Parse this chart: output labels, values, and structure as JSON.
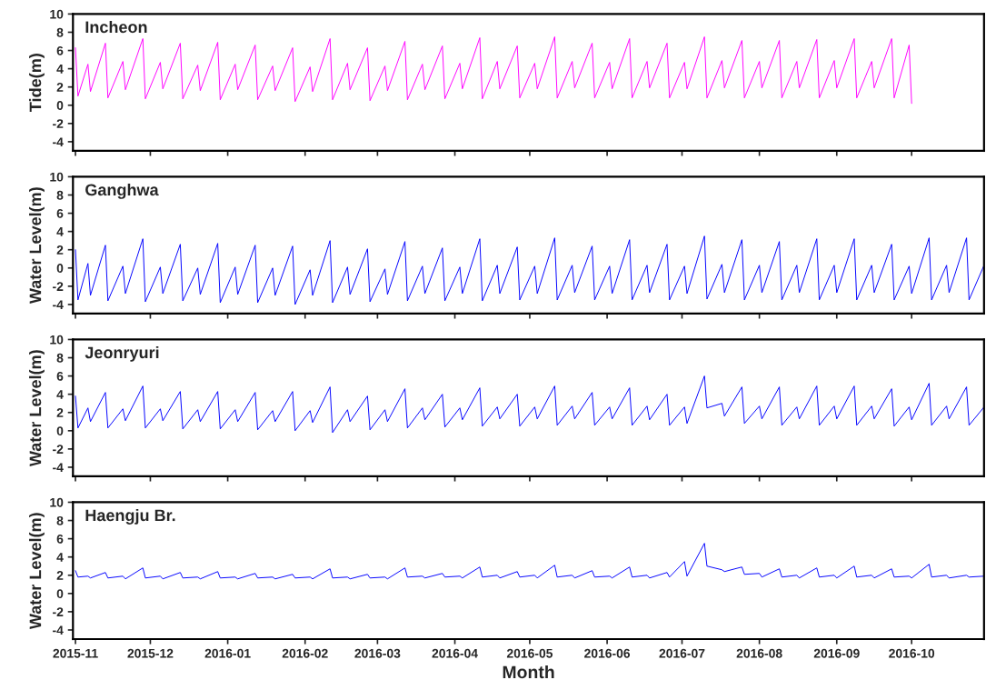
{
  "chart_data": [
    {
      "type": "line",
      "title": "Incheon",
      "ylabel": "Tide(m)",
      "ylim": [
        -5,
        10
      ],
      "yticks": [
        -4,
        -2,
        0,
        2,
        4,
        6,
        8,
        10
      ],
      "xlim": [
        "2015-10-31",
        "2016-10-30"
      ],
      "xticks": [
        "2015-11",
        "2015-12",
        "2016-01",
        "2016-02",
        "2016-03",
        "2016-04",
        "2016-05",
        "2016-06",
        "2016-07",
        "2016-08",
        "2016-09",
        "2016-10"
      ],
      "tick_labels": "y",
      "grid": false,
      "series": [
        {
          "color": "#ff00ff",
          "x": [
            "2015-11-01",
            "2015-11-02",
            "2015-11-06",
            "2015-11-07",
            "2015-11-13",
            "2015-11-14",
            "2015-11-20",
            "2015-11-21",
            "2015-11-28",
            "2015-11-29",
            "2015-12-05",
            "2015-12-06",
            "2015-12-13",
            "2015-12-14",
            "2015-12-20",
            "2015-12-21",
            "2015-12-28",
            "2015-12-29",
            "2016-01-04",
            "2016-01-05",
            "2016-01-12",
            "2016-01-13",
            "2016-01-19",
            "2016-01-20",
            "2016-01-27",
            "2016-01-28",
            "2016-02-03",
            "2016-02-04",
            "2016-02-11",
            "2016-02-12",
            "2016-02-18",
            "2016-02-19",
            "2016-02-26",
            "2016-02-27",
            "2016-03-04",
            "2016-03-05",
            "2016-03-12",
            "2016-03-13",
            "2016-03-19",
            "2016-03-20",
            "2016-03-27",
            "2016-03-28",
            "2016-04-03",
            "2016-04-04",
            "2016-04-11",
            "2016-04-12",
            "2016-04-18",
            "2016-04-19",
            "2016-04-26",
            "2016-04-27",
            "2016-05-03",
            "2016-05-04",
            "2016-05-11",
            "2016-05-12",
            "2016-05-18",
            "2016-05-19",
            "2016-05-26",
            "2016-05-27",
            "2016-06-02",
            "2016-06-03",
            "2016-06-10",
            "2016-06-11",
            "2016-06-17",
            "2016-06-18",
            "2016-06-25",
            "2016-06-26",
            "2016-07-02",
            "2016-07-03",
            "2016-07-10",
            "2016-07-11",
            "2016-07-17",
            "2016-07-18",
            "2016-07-25",
            "2016-07-26",
            "2016-08-01",
            "2016-08-02",
            "2016-08-09",
            "2016-08-10",
            "2016-08-16",
            "2016-08-17",
            "2016-08-24",
            "2016-08-25",
            "2016-08-31",
            "2016-09-01",
            "2016-09-08",
            "2016-09-09",
            "2016-09-15",
            "2016-09-16",
            "2016-09-23",
            "2016-09-24",
            "2016-09-30",
            "2016-10-01"
          ],
          "values": [
            6.3,
            1.0,
            4.5,
            1.5,
            6.8,
            0.8,
            4.8,
            1.7,
            7.3,
            0.7,
            4.7,
            1.8,
            6.8,
            0.7,
            4.4,
            1.6,
            6.9,
            0.6,
            4.5,
            1.7,
            6.6,
            0.6,
            4.3,
            1.6,
            6.3,
            0.4,
            4.2,
            1.5,
            7.3,
            0.6,
            4.6,
            1.7,
            6.3,
            0.5,
            4.3,
            1.6,
            7.0,
            0.6,
            4.5,
            1.7,
            6.5,
            0.7,
            4.6,
            1.8,
            7.4,
            0.7,
            4.8,
            1.8,
            6.5,
            0.8,
            4.6,
            1.8,
            7.5,
            0.8,
            4.8,
            1.9,
            6.8,
            0.8,
            4.7,
            1.8,
            7.3,
            0.8,
            4.8,
            1.9,
            6.8,
            0.8,
            4.7,
            1.8,
            7.5,
            0.8,
            4.9,
            1.9,
            7.1,
            0.8,
            4.8,
            1.9,
            7.1,
            0.8,
            4.8,
            1.9,
            7.2,
            0.8,
            4.9,
            1.9,
            7.3,
            0.8,
            4.8,
            1.9,
            7.3,
            0.8,
            6.6,
            0.2
          ]
        }
      ]
    },
    {
      "type": "line",
      "title": "Ganghwa",
      "ylabel": "Water Level(m)",
      "ylim": [
        -5,
        10
      ],
      "yticks": [
        -4,
        -2,
        0,
        2,
        4,
        6,
        8,
        10
      ],
      "xlim": [
        "2015-10-31",
        "2016-10-30"
      ],
      "xticks": [
        "2015-11",
        "2015-12",
        "2016-01",
        "2016-02",
        "2016-03",
        "2016-04",
        "2016-05",
        "2016-06",
        "2016-07",
        "2016-08",
        "2016-09",
        "2016-10"
      ],
      "tick_labels": "y",
      "grid": false,
      "series": [
        {
          "color": "#0000ff",
          "x": [
            "2015-11-01",
            "2015-11-02",
            "2015-11-06",
            "2015-11-07",
            "2015-11-13",
            "2015-11-14",
            "2015-11-20",
            "2015-11-21",
            "2015-11-28",
            "2015-11-29",
            "2015-12-05",
            "2015-12-06",
            "2015-12-13",
            "2015-12-14",
            "2015-12-20",
            "2015-12-21",
            "2015-12-28",
            "2015-12-29",
            "2016-01-04",
            "2016-01-05",
            "2016-01-12",
            "2016-01-13",
            "2016-01-19",
            "2016-01-20",
            "2016-01-27",
            "2016-01-28",
            "2016-02-03",
            "2016-02-04",
            "2016-02-11",
            "2016-02-12",
            "2016-02-18",
            "2016-02-19",
            "2016-02-26",
            "2016-02-27",
            "2016-03-04",
            "2016-03-05",
            "2016-03-12",
            "2016-03-13",
            "2016-03-19",
            "2016-03-20",
            "2016-03-27",
            "2016-03-28",
            "2016-04-03",
            "2016-04-04",
            "2016-04-11",
            "2016-04-12",
            "2016-04-18",
            "2016-04-19",
            "2016-04-26",
            "2016-04-27",
            "2016-05-03",
            "2016-05-04",
            "2016-05-11",
            "2016-05-12",
            "2016-05-18",
            "2016-05-19",
            "2016-05-26",
            "2016-05-27",
            "2016-06-02",
            "2016-06-03",
            "2016-06-10",
            "2016-06-11",
            "2016-06-17",
            "2016-06-18",
            "2016-06-25",
            "2016-06-26",
            "2016-07-02",
            "2016-07-03",
            "2016-07-10",
            "2016-07-11",
            "2016-07-17",
            "2016-07-18",
            "2016-07-25",
            "2016-07-26",
            "2016-08-01",
            "2016-08-02",
            "2016-08-09",
            "2016-08-10",
            "2016-08-16",
            "2016-08-17",
            "2016-08-24",
            "2016-08-25",
            "2016-08-31",
            "2016-09-01",
            "2016-09-08",
            "2016-09-09",
            "2016-09-15",
            "2016-09-16",
            "2016-09-23",
            "2016-09-24",
            "2016-09-30",
            "2016-10-01",
            "2016-10-08",
            "2016-10-09",
            "2016-10-15",
            "2016-10-16",
            "2016-10-23",
            "2016-10-24",
            "2016-10-30"
          ],
          "values": [
            2.0,
            -3.5,
            0.5,
            -3.0,
            2.5,
            -3.6,
            0.2,
            -2.8,
            3.2,
            -3.7,
            0.1,
            -2.8,
            2.6,
            -3.6,
            0.0,
            -2.9,
            2.7,
            -3.8,
            0.1,
            -2.9,
            2.5,
            -3.8,
            0.0,
            -3.0,
            2.4,
            -4.0,
            -0.2,
            -3.0,
            3.0,
            -3.8,
            0.1,
            -2.9,
            2.1,
            -3.7,
            -0.1,
            -2.9,
            2.9,
            -3.6,
            0.2,
            -2.8,
            2.2,
            -3.6,
            0.1,
            -2.8,
            3.2,
            -3.6,
            0.3,
            -2.8,
            2.3,
            -3.5,
            0.2,
            -2.8,
            3.3,
            -3.5,
            0.3,
            -2.7,
            2.4,
            -3.5,
            0.2,
            -2.8,
            3.1,
            -3.5,
            0.3,
            -2.7,
            2.6,
            -3.5,
            0.2,
            -2.8,
            3.5,
            -3.4,
            0.4,
            -2.7,
            3.1,
            -3.5,
            0.3,
            -2.7,
            2.9,
            -3.5,
            0.3,
            -2.7,
            3.2,
            -3.5,
            0.3,
            -2.7,
            3.2,
            -3.5,
            0.3,
            -2.7,
            2.6,
            -3.5,
            0.2,
            -2.8,
            3.3,
            -3.5,
            0.3,
            -2.7,
            3.3,
            -3.5,
            0.3
          ]
        }
      ]
    },
    {
      "type": "line",
      "title": "Jeonryuri",
      "ylabel": "Water Level(m)",
      "ylim": [
        -5,
        10
      ],
      "yticks": [
        -4,
        -2,
        0,
        2,
        4,
        6,
        8,
        10
      ],
      "xlim": [
        "2015-10-31",
        "2016-10-30"
      ],
      "xticks": [
        "2015-11",
        "2015-12",
        "2016-01",
        "2016-02",
        "2016-03",
        "2016-04",
        "2016-05",
        "2016-06",
        "2016-07",
        "2016-08",
        "2016-09",
        "2016-10"
      ],
      "tick_labels": "y",
      "grid": false,
      "series": [
        {
          "color": "#0000ff",
          "x": [
            "2015-11-01",
            "2015-11-02",
            "2015-11-06",
            "2015-11-07",
            "2015-11-13",
            "2015-11-14",
            "2015-11-20",
            "2015-11-21",
            "2015-11-28",
            "2015-11-29",
            "2015-12-05",
            "2015-12-06",
            "2015-12-13",
            "2015-12-14",
            "2015-12-20",
            "2015-12-21",
            "2015-12-28",
            "2015-12-29",
            "2016-01-04",
            "2016-01-05",
            "2016-01-12",
            "2016-01-13",
            "2016-01-19",
            "2016-01-20",
            "2016-01-27",
            "2016-01-28",
            "2016-02-03",
            "2016-02-04",
            "2016-02-11",
            "2016-02-12",
            "2016-02-18",
            "2016-02-19",
            "2016-02-26",
            "2016-02-27",
            "2016-03-04",
            "2016-03-05",
            "2016-03-12",
            "2016-03-13",
            "2016-03-19",
            "2016-03-20",
            "2016-03-27",
            "2016-03-28",
            "2016-04-03",
            "2016-04-04",
            "2016-04-11",
            "2016-04-12",
            "2016-04-18",
            "2016-04-19",
            "2016-04-26",
            "2016-04-27",
            "2016-05-03",
            "2016-05-04",
            "2016-05-11",
            "2016-05-12",
            "2016-05-18",
            "2016-05-19",
            "2016-05-26",
            "2016-05-27",
            "2016-06-02",
            "2016-06-03",
            "2016-06-10",
            "2016-06-11",
            "2016-06-17",
            "2016-06-18",
            "2016-06-25",
            "2016-06-26",
            "2016-07-02",
            "2016-07-03",
            "2016-07-10",
            "2016-07-11",
            "2016-07-17",
            "2016-07-18",
            "2016-07-25",
            "2016-07-26",
            "2016-08-01",
            "2016-08-02",
            "2016-08-09",
            "2016-08-10",
            "2016-08-16",
            "2016-08-17",
            "2016-08-24",
            "2016-08-25",
            "2016-08-31",
            "2016-09-01",
            "2016-09-08",
            "2016-09-09",
            "2016-09-15",
            "2016-09-16",
            "2016-09-23",
            "2016-09-24",
            "2016-09-30",
            "2016-10-01",
            "2016-10-08",
            "2016-10-09",
            "2016-10-15",
            "2016-10-16",
            "2016-10-23",
            "2016-10-24",
            "2016-10-30"
          ],
          "values": [
            3.8,
            0.3,
            2.5,
            1.0,
            4.2,
            0.3,
            2.4,
            1.1,
            4.9,
            0.3,
            2.4,
            1.1,
            4.3,
            0.2,
            2.3,
            1.0,
            4.3,
            0.2,
            2.3,
            1.0,
            4.2,
            0.1,
            2.2,
            1.0,
            4.3,
            0.0,
            2.2,
            0.9,
            4.8,
            -0.2,
            2.3,
            1.0,
            3.8,
            0.1,
            2.3,
            1.0,
            4.6,
            0.3,
            2.5,
            1.2,
            4.0,
            0.4,
            2.5,
            1.2,
            4.7,
            0.5,
            2.6,
            1.3,
            4.0,
            0.5,
            2.6,
            1.3,
            4.9,
            0.6,
            2.7,
            1.3,
            4.2,
            0.6,
            2.6,
            1.3,
            4.7,
            0.6,
            2.7,
            1.2,
            4.0,
            0.6,
            2.6,
            0.8,
            6.0,
            2.5,
            3.0,
            1.6,
            4.8,
            0.8,
            2.7,
            1.3,
            4.8,
            0.6,
            2.6,
            1.3,
            4.9,
            0.6,
            2.7,
            1.3,
            4.9,
            0.6,
            2.7,
            1.3,
            4.6,
            0.5,
            2.6,
            1.2,
            5.2,
            0.6,
            2.7,
            1.3,
            4.8,
            0.6,
            2.6
          ]
        }
      ]
    },
    {
      "type": "line",
      "title": "Haengju Br.",
      "ylabel": "Water Level(m)",
      "xlabel": "Month",
      "ylim": [
        -5,
        10
      ],
      "yticks": [
        -4,
        -2,
        0,
        2,
        4,
        6,
        8,
        10
      ],
      "xlim": [
        "2015-10-31",
        "2016-10-30"
      ],
      "xticks": [
        "2015-11",
        "2015-12",
        "2016-01",
        "2016-02",
        "2016-03",
        "2016-04",
        "2016-05",
        "2016-06",
        "2016-07",
        "2016-08",
        "2016-09",
        "2016-10"
      ],
      "grid": false,
      "series": [
        {
          "color": "#0000ff",
          "x": [
            "2015-11-01",
            "2015-11-02",
            "2015-11-06",
            "2015-11-07",
            "2015-11-13",
            "2015-11-14",
            "2015-11-20",
            "2015-11-21",
            "2015-11-28",
            "2015-11-29",
            "2015-12-05",
            "2015-12-06",
            "2015-12-13",
            "2015-12-14",
            "2015-12-20",
            "2015-12-21",
            "2015-12-28",
            "2015-12-29",
            "2016-01-04",
            "2016-01-05",
            "2016-01-12",
            "2016-01-13",
            "2016-01-19",
            "2016-01-20",
            "2016-01-27",
            "2016-01-28",
            "2016-02-03",
            "2016-02-04",
            "2016-02-11",
            "2016-02-12",
            "2016-02-18",
            "2016-02-19",
            "2016-02-26",
            "2016-02-27",
            "2016-03-04",
            "2016-03-05",
            "2016-03-12",
            "2016-03-13",
            "2016-03-19",
            "2016-03-20",
            "2016-03-27",
            "2016-03-28",
            "2016-04-03",
            "2016-04-04",
            "2016-04-11",
            "2016-04-12",
            "2016-04-18",
            "2016-04-19",
            "2016-04-26",
            "2016-04-27",
            "2016-05-03",
            "2016-05-04",
            "2016-05-11",
            "2016-05-12",
            "2016-05-18",
            "2016-05-19",
            "2016-05-26",
            "2016-05-27",
            "2016-06-02",
            "2016-06-03",
            "2016-06-10",
            "2016-06-11",
            "2016-06-17",
            "2016-06-18",
            "2016-06-25",
            "2016-06-26",
            "2016-07-02",
            "2016-07-03",
            "2016-07-10",
            "2016-07-11",
            "2016-07-17",
            "2016-07-18",
            "2016-07-25",
            "2016-07-26",
            "2016-08-01",
            "2016-08-02",
            "2016-08-09",
            "2016-08-10",
            "2016-08-16",
            "2016-08-17",
            "2016-08-24",
            "2016-08-25",
            "2016-08-31",
            "2016-09-01",
            "2016-09-08",
            "2016-09-09",
            "2016-09-15",
            "2016-09-16",
            "2016-09-23",
            "2016-09-24",
            "2016-09-30",
            "2016-10-01",
            "2016-10-08",
            "2016-10-09",
            "2016-10-15",
            "2016-10-16",
            "2016-10-23",
            "2016-10-24",
            "2016-10-30"
          ],
          "values": [
            2.5,
            1.8,
            1.9,
            1.7,
            2.3,
            1.7,
            1.9,
            1.6,
            2.8,
            1.7,
            1.9,
            1.6,
            2.3,
            1.7,
            1.8,
            1.6,
            2.4,
            1.7,
            1.8,
            1.6,
            2.2,
            1.7,
            1.8,
            1.6,
            2.1,
            1.7,
            1.8,
            1.6,
            2.7,
            1.7,
            1.8,
            1.6,
            2.1,
            1.7,
            1.8,
            1.6,
            2.8,
            1.8,
            1.9,
            1.7,
            2.2,
            1.8,
            1.9,
            1.7,
            2.9,
            1.8,
            2.0,
            1.7,
            2.4,
            1.8,
            2.0,
            1.7,
            3.1,
            1.8,
            2.0,
            1.7,
            2.5,
            1.8,
            1.9,
            1.7,
            2.9,
            1.8,
            2.0,
            1.7,
            2.3,
            1.8,
            3.5,
            1.9,
            5.5,
            3.0,
            2.6,
            2.4,
            2.9,
            2.1,
            2.2,
            1.8,
            2.7,
            1.8,
            2.0,
            1.7,
            2.8,
            1.8,
            2.0,
            1.7,
            3.0,
            1.8,
            2.0,
            1.7,
            2.7,
            1.8,
            1.9,
            1.7,
            3.2,
            1.8,
            2.0,
            1.7,
            2.0,
            1.8,
            1.9
          ]
        }
      ]
    }
  ]
}
